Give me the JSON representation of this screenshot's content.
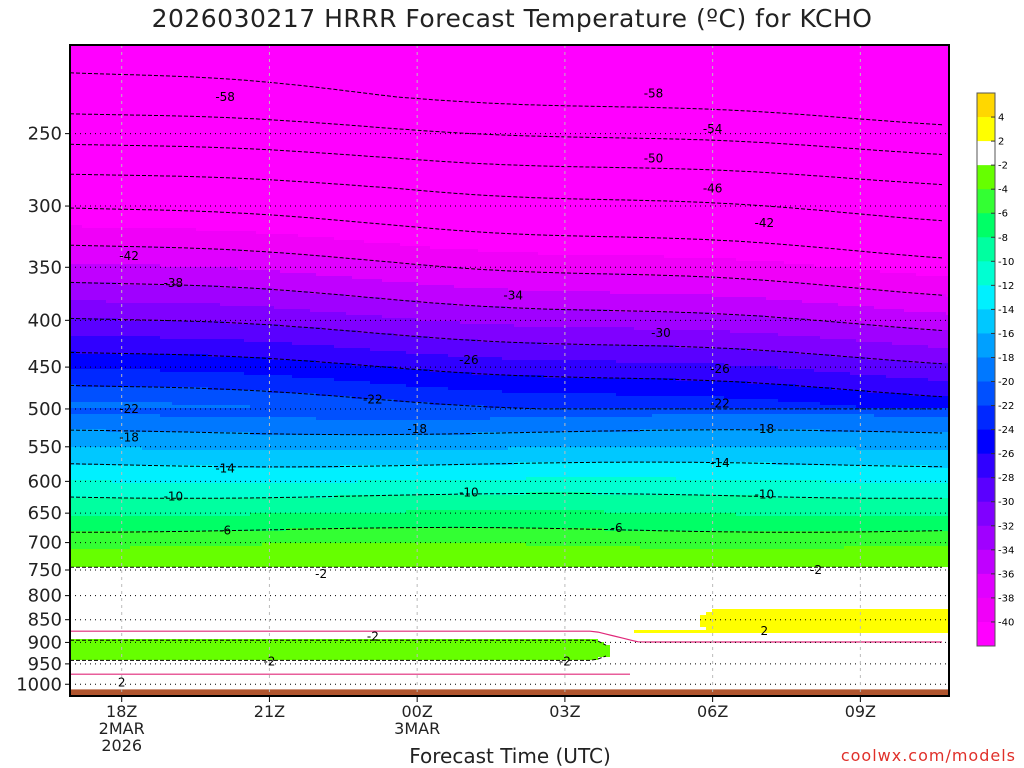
{
  "title": "2026030217 HRRR Forecast Temperature (ºC) for KCHO",
  "xlabel": "Forecast Time (UTC)",
  "credit": "coolwx.com/models",
  "chart_data": {
    "type": "heatmap",
    "title": "2026030217 HRRR Forecast Temperature (ºC) for KCHO",
    "xlabel": "Forecast Time (UTC)",
    "ylabel": "",
    "x_axis": {
      "range_hours_from_18Z": [
        -0.35,
        5.6
      ],
      "ticks": [
        {
          "hour": 0,
          "lines": [
            "18Z",
            "2MAR",
            "2026"
          ]
        },
        {
          "hour": 1,
          "lines": [
            "21Z"
          ]
        },
        {
          "hour": 2,
          "lines": [
            "00Z",
            "3MAR"
          ]
        },
        {
          "hour": 3,
          "lines": [
            "03Z"
          ]
        },
        {
          "hour": 4,
          "lines": [
            "06Z"
          ]
        },
        {
          "hour": 5,
          "lines": [
            "09Z"
          ]
        }
      ]
    },
    "y_axis": {
      "label": "",
      "scale": "log",
      "inverted": true,
      "range_hpa": [
        1030,
        200
      ],
      "ticks": [
        250,
        300,
        350,
        400,
        450,
        500,
        550,
        600,
        650,
        700,
        750,
        800,
        850,
        900,
        950,
        1000
      ]
    },
    "colorbar": {
      "labels": [
        "4",
        "2",
        "-2",
        "-4",
        "-6",
        "-8",
        "-10",
        "-12",
        "-14",
        "-16",
        "-18",
        "-20",
        "-22",
        "-24",
        "-26",
        "-28",
        "-30",
        "-32",
        "-34",
        "-36",
        "-38",
        "-40"
      ],
      "bands": [
        {
          "lo": 4,
          "hi": 6,
          "color": "#ffd700"
        },
        {
          "lo": 2,
          "hi": 4,
          "color": "#ffff00"
        },
        {
          "lo": -2,
          "hi": 2,
          "color": "#ffffff"
        },
        {
          "lo": -4,
          "hi": -2,
          "color": "#66ff00"
        },
        {
          "lo": -6,
          "hi": -4,
          "color": "#33ff33"
        },
        {
          "lo": -8,
          "hi": -6,
          "color": "#00ff66"
        },
        {
          "lo": -10,
          "hi": -8,
          "color": "#00ffa0"
        },
        {
          "lo": -12,
          "hi": -10,
          "color": "#00ffd2"
        },
        {
          "lo": -14,
          "hi": -12,
          "color": "#00f0ff"
        },
        {
          "lo": -16,
          "hi": -14,
          "color": "#00c8ff"
        },
        {
          "lo": -18,
          "hi": -16,
          "color": "#00a0ff"
        },
        {
          "lo": -20,
          "hi": -18,
          "color": "#0078ff"
        },
        {
          "lo": -22,
          "hi": -20,
          "color": "#0050ff"
        },
        {
          "lo": -24,
          "hi": -22,
          "color": "#0028ff"
        },
        {
          "lo": -26,
          "hi": -24,
          "color": "#0000ff"
        },
        {
          "lo": -28,
          "hi": -26,
          "color": "#3000ff"
        },
        {
          "lo": -30,
          "hi": -28,
          "color": "#5a00ff"
        },
        {
          "lo": -32,
          "hi": -30,
          "color": "#8000ff"
        },
        {
          "lo": -34,
          "hi": -32,
          "color": "#a000ff"
        },
        {
          "lo": -36,
          "hi": -34,
          "color": "#c000ff"
        },
        {
          "lo": -38,
          "hi": -36,
          "color": "#e000ff"
        },
        {
          "lo": -40,
          "hi": -38,
          "color": "#f000f8"
        },
        {
          "lo": -999,
          "hi": -40,
          "color": "#ff00ff"
        }
      ]
    },
    "ground_color": "#b0552e",
    "contour_labels": [
      {
        "text": "-58",
        "hour": 0.7,
        "hpa": 228
      },
      {
        "text": "-58",
        "hour": 3.6,
        "hpa": 226
      },
      {
        "text": "-54",
        "hour": 4.0,
        "hpa": 247
      },
      {
        "text": "-50",
        "hour": 3.6,
        "hpa": 266
      },
      {
        "text": "-46",
        "hour": 4.0,
        "hpa": 287
      },
      {
        "text": "-42",
        "hour": 0.05,
        "hpa": 340
      },
      {
        "text": "-42",
        "hour": 4.35,
        "hpa": 313
      },
      {
        "text": "-38",
        "hour": 0.35,
        "hpa": 364
      },
      {
        "text": "-34",
        "hour": 2.65,
        "hpa": 376
      },
      {
        "text": "-30",
        "hour": 3.65,
        "hpa": 413
      },
      {
        "text": "-26",
        "hour": 2.35,
        "hpa": 442
      },
      {
        "text": "-26",
        "hour": 4.05,
        "hpa": 452
      },
      {
        "text": "-22",
        "hour": 0.05,
        "hpa": 500
      },
      {
        "text": "-22",
        "hour": 1.7,
        "hpa": 488
      },
      {
        "text": "-22",
        "hour": 4.05,
        "hpa": 493
      },
      {
        "text": "-18",
        "hour": 0.05,
        "hpa": 537
      },
      {
        "text": "-18",
        "hour": 2.0,
        "hpa": 526
      },
      {
        "text": "-18",
        "hour": 4.35,
        "hpa": 526
      },
      {
        "text": "-14",
        "hour": 0.7,
        "hpa": 581
      },
      {
        "text": "-14",
        "hour": 4.05,
        "hpa": 573
      },
      {
        "text": "-10",
        "hour": 0.35,
        "hpa": 623
      },
      {
        "text": "-10",
        "hour": 2.35,
        "hpa": 617
      },
      {
        "text": "-10",
        "hour": 4.35,
        "hpa": 620
      },
      {
        "text": "-6",
        "hour": 0.7,
        "hpa": 679
      },
      {
        "text": "-6",
        "hour": 3.35,
        "hpa": 675
      },
      {
        "text": "-2",
        "hour": 1.35,
        "hpa": 758
      },
      {
        "text": "-2",
        "hour": 4.7,
        "hpa": 750
      },
      {
        "text": "2",
        "hour": 4.35,
        "hpa": 875
      },
      {
        "text": "-2",
        "hour": 1.7,
        "hpa": 887
      },
      {
        "text": "-2",
        "hour": 1.0,
        "hpa": 944
      },
      {
        "text": "-2",
        "hour": 3.0,
        "hpa": 944
      },
      {
        "text": "2",
        "hour": 0.0,
        "hpa": 996
      }
    ]
  }
}
